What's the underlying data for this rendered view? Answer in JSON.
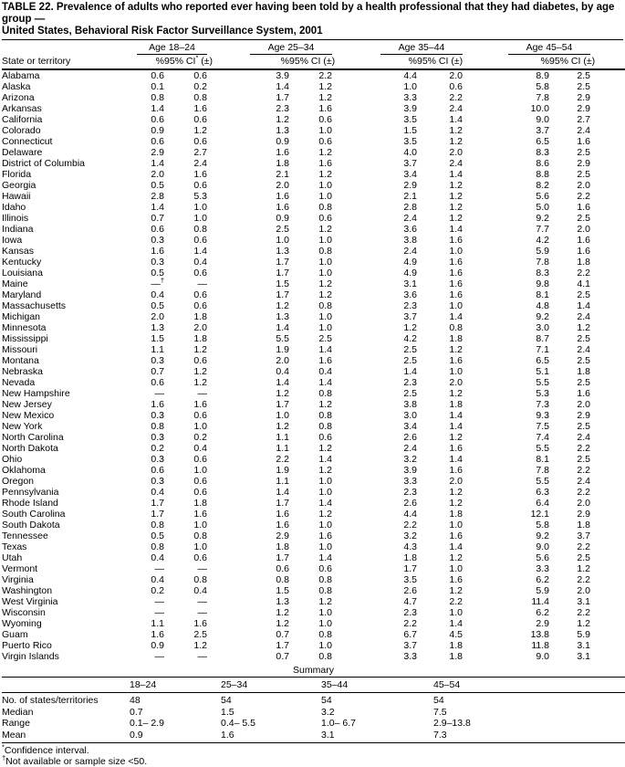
{
  "title": {
    "line1": "TABLE 22. Prevalence of adults who reported ever having been told by a health professional that they had diabetes, by age group —",
    "line2": "United States, Behavioral Risk Factor Surveillance System, 2001"
  },
  "table": {
    "state_col_header": "State or territory",
    "age_groups": [
      "Age 18–24",
      "Age 25–34",
      "Age 35–44",
      "Age 45–54"
    ],
    "subheaders": {
      "pct": "%",
      "ci_first": "95% CI* (±)",
      "ci": "95% CI (±)"
    },
    "rows": [
      {
        "state": "Alabama",
        "values": [
          "0.6",
          "0.6",
          "3.9",
          "2.2",
          "4.4",
          "2.0",
          "8.9",
          "2.5"
        ]
      },
      {
        "state": "Alaska",
        "values": [
          "0.1",
          "0.2",
          "1.4",
          "1.2",
          "1.0",
          "0.6",
          "5.8",
          "2.5"
        ]
      },
      {
        "state": "Arizona",
        "values": [
          "0.8",
          "0.8",
          "1.7",
          "1.2",
          "3.3",
          "2.2",
          "7.8",
          "2.9"
        ]
      },
      {
        "state": "Arkansas",
        "values": [
          "1.4",
          "1.6",
          "2.3",
          "1.6",
          "3.9",
          "2.4",
          "10.0",
          "2.9"
        ]
      },
      {
        "state": "California",
        "values": [
          "0.6",
          "0.6",
          "1.2",
          "0.6",
          "3.5",
          "1.4",
          "9.0",
          "2.7"
        ]
      },
      {
        "state": "Colorado",
        "values": [
          "0.9",
          "1.2",
          "1.3",
          "1.0",
          "1.5",
          "1.2",
          "3.7",
          "2.4"
        ]
      },
      {
        "state": "Connecticut",
        "values": [
          "0.6",
          "0.6",
          "0.9",
          "0.6",
          "3.5",
          "1.2",
          "6.5",
          "1.6"
        ]
      },
      {
        "state": "Delaware",
        "values": [
          "2.9",
          "2.7",
          "1.6",
          "1.2",
          "4.0",
          "2.0",
          "8.3",
          "2.5"
        ]
      },
      {
        "state": "District of Columbia",
        "values": [
          "1.4",
          "2.4",
          "1.8",
          "1.6",
          "3.7",
          "2.4",
          "8.6",
          "2.9"
        ]
      },
      {
        "state": "Florida",
        "values": [
          "2.0",
          "1.6",
          "2.1",
          "1.2",
          "3.4",
          "1.4",
          "8.8",
          "2.5"
        ]
      },
      {
        "state": "Georgia",
        "values": [
          "0.5",
          "0.6",
          "2.0",
          "1.0",
          "2.9",
          "1.2",
          "8.2",
          "2.0"
        ]
      },
      {
        "state": "Hawaii",
        "values": [
          "2.8",
          "5.3",
          "1.6",
          "1.0",
          "2.1",
          "1.2",
          "5.6",
          "2.2"
        ]
      },
      {
        "state": "Idaho",
        "values": [
          "1.4",
          "1.0",
          "1.6",
          "0.8",
          "2.8",
          "1.2",
          "5.0",
          "1.6"
        ]
      },
      {
        "state": "Illinois",
        "values": [
          "0.7",
          "1.0",
          "0.9",
          "0.6",
          "2.4",
          "1.2",
          "9.2",
          "2.5"
        ]
      },
      {
        "state": "Indiana",
        "values": [
          "0.6",
          "0.8",
          "2.5",
          "1.2",
          "3.6",
          "1.4",
          "7.7",
          "2.0"
        ]
      },
      {
        "state": "Iowa",
        "values": [
          "0.3",
          "0.6",
          "1.0",
          "1.0",
          "3.8",
          "1.6",
          "4.2",
          "1.6"
        ]
      },
      {
        "state": "Kansas",
        "values": [
          "1.6",
          "1.4",
          "1.3",
          "0.8",
          "2.4",
          "1.0",
          "5.9",
          "1.6"
        ]
      },
      {
        "state": "Kentucky",
        "values": [
          "0.3",
          "0.4",
          "1.7",
          "1.0",
          "4.9",
          "1.6",
          "7.8",
          "1.8"
        ]
      },
      {
        "state": "Louisiana",
        "values": [
          "0.5",
          "0.6",
          "1.7",
          "1.0",
          "4.9",
          "1.6",
          "8.3",
          "2.2"
        ]
      },
      {
        "state": "Maine",
        "values": [
          "—†",
          "—",
          "1.5",
          "1.2",
          "3.1",
          "1.6",
          "9.8",
          "4.1"
        ]
      },
      {
        "state": "Maryland",
        "values": [
          "0.4",
          "0.6",
          "1.7",
          "1.2",
          "3.6",
          "1.6",
          "8.1",
          "2.5"
        ]
      },
      {
        "state": "Massachusetts",
        "values": [
          "0.5",
          "0.6",
          "1.2",
          "0.8",
          "2.3",
          "1.0",
          "4.8",
          "1.4"
        ]
      },
      {
        "state": "Michigan",
        "values": [
          "2.0",
          "1.8",
          "1.3",
          "1.0",
          "3.7",
          "1.4",
          "9.2",
          "2.4"
        ]
      },
      {
        "state": "Minnesota",
        "values": [
          "1.3",
          "2.0",
          "1.4",
          "1.0",
          "1.2",
          "0.8",
          "3.0",
          "1.2"
        ]
      },
      {
        "state": "Mississippi",
        "values": [
          "1.5",
          "1.8",
          "5.5",
          "2.5",
          "4.2",
          "1.8",
          "8.7",
          "2.5"
        ]
      },
      {
        "state": "Missouri",
        "values": [
          "1.1",
          "1.2",
          "1.9",
          "1.4",
          "2.5",
          "1.2",
          "7.1",
          "2.4"
        ]
      },
      {
        "state": "Montana",
        "values": [
          "0.3",
          "0.6",
          "2.0",
          "1.6",
          "2.5",
          "1.6",
          "6.5",
          "2.5"
        ]
      },
      {
        "state": "Nebraska",
        "values": [
          "0.7",
          "1.2",
          "0.4",
          "0.4",
          "1.4",
          "1.0",
          "5.1",
          "1.8"
        ]
      },
      {
        "state": "Nevada",
        "values": [
          "0.6",
          "1.2",
          "1.4",
          "1.4",
          "2.3",
          "2.0",
          "5.5",
          "2.5"
        ]
      },
      {
        "state": "New Hampshire",
        "values": [
          "—",
          "—",
          "1.2",
          "0.8",
          "2.5",
          "1.2",
          "5.3",
          "1.6"
        ]
      },
      {
        "state": "New Jersey",
        "values": [
          "1.6",
          "1.6",
          "1.7",
          "1.2",
          "3.8",
          "1.8",
          "7.3",
          "2.0"
        ]
      },
      {
        "state": "New Mexico",
        "values": [
          "0.3",
          "0.6",
          "1.0",
          "0.8",
          "3.0",
          "1.4",
          "9.3",
          "2.9"
        ]
      },
      {
        "state": "New York",
        "values": [
          "0.8",
          "1.0",
          "1.2",
          "0.8",
          "3.4",
          "1.4",
          "7.5",
          "2.5"
        ]
      },
      {
        "state": "North Carolina",
        "values": [
          "0.3",
          "0.2",
          "1.1",
          "0.6",
          "2.6",
          "1.2",
          "7.4",
          "2.4"
        ]
      },
      {
        "state": "North Dakota",
        "values": [
          "0.2",
          "0.4",
          "1.1",
          "1.2",
          "2.4",
          "1.6",
          "5.5",
          "2.2"
        ]
      },
      {
        "state": "Ohio",
        "values": [
          "0.3",
          "0.6",
          "2.2",
          "1.4",
          "3.2",
          "1.4",
          "8.1",
          "2.5"
        ]
      },
      {
        "state": "Oklahoma",
        "values": [
          "0.6",
          "1.0",
          "1.9",
          "1.2",
          "3.9",
          "1.6",
          "7.8",
          "2.2"
        ]
      },
      {
        "state": "Oregon",
        "values": [
          "0.3",
          "0.6",
          "1.1",
          "1.0",
          "3.3",
          "2.0",
          "5.5",
          "2.4"
        ]
      },
      {
        "state": "Pennsylvania",
        "values": [
          "0.4",
          "0.6",
          "1.4",
          "1.0",
          "2.3",
          "1.2",
          "6.3",
          "2.2"
        ]
      },
      {
        "state": "Rhode Island",
        "values": [
          "1.7",
          "1.8",
          "1.7",
          "1.4",
          "2.6",
          "1.2",
          "6.4",
          "2.0"
        ]
      },
      {
        "state": "South Carolina",
        "values": [
          "1.7",
          "1.6",
          "1.6",
          "1.2",
          "4.4",
          "1.8",
          "12.1",
          "2.9"
        ]
      },
      {
        "state": "South Dakota",
        "values": [
          "0.8",
          "1.0",
          "1.6",
          "1.0",
          "2.2",
          "1.0",
          "5.8",
          "1.8"
        ]
      },
      {
        "state": "Tennessee",
        "values": [
          "0.5",
          "0.8",
          "2.9",
          "1.6",
          "3.2",
          "1.6",
          "9.2",
          "3.7"
        ]
      },
      {
        "state": "Texas",
        "values": [
          "0.8",
          "1.0",
          "1.8",
          "1.0",
          "4.3",
          "1.4",
          "9.0",
          "2.2"
        ]
      },
      {
        "state": "Utah",
        "values": [
          "0.4",
          "0.6",
          "1.7",
          "1.4",
          "1.8",
          "1.2",
          "5.6",
          "2.5"
        ]
      },
      {
        "state": "Vermont",
        "values": [
          "—",
          "—",
          "0.6",
          "0.6",
          "1.7",
          "1.0",
          "3.3",
          "1.2"
        ]
      },
      {
        "state": "Virginia",
        "values": [
          "0.4",
          "0.8",
          "0.8",
          "0.8",
          "3.5",
          "1.6",
          "6.2",
          "2.2"
        ]
      },
      {
        "state": "Washington",
        "values": [
          "0.2",
          "0.4",
          "1.5",
          "0.8",
          "2.6",
          "1.2",
          "5.9",
          "2.0"
        ]
      },
      {
        "state": "West Virginia",
        "values": [
          "—",
          "—",
          "1.3",
          "1.2",
          "4.7",
          "2.2",
          "11.4",
          "3.1"
        ]
      },
      {
        "state": "Wisconsin",
        "values": [
          "—",
          "—",
          "1.2",
          "1.0",
          "2.3",
          "1.0",
          "6.2",
          "2.2"
        ]
      },
      {
        "state": "Wyoming",
        "values": [
          "1.1",
          "1.6",
          "1.2",
          "1.0",
          "2.2",
          "1.4",
          "2.9",
          "1.2"
        ]
      },
      {
        "state": "Guam",
        "values": [
          "1.6",
          "2.5",
          "0.7",
          "0.8",
          "6.7",
          "4.5",
          "13.8",
          "5.9"
        ]
      },
      {
        "state": "Puerto Rico",
        "values": [
          "0.9",
          "1.2",
          "1.7",
          "1.0",
          "3.7",
          "1.8",
          "11.8",
          "3.1"
        ]
      },
      {
        "state": "Virgin Islands",
        "values": [
          "—",
          "—",
          "0.7",
          "0.8",
          "3.3",
          "1.8",
          "9.0",
          "3.1"
        ]
      }
    ]
  },
  "summary": {
    "title": "Summary",
    "col_headers": [
      "18–24",
      "25–34",
      "35–44",
      "45–54"
    ],
    "rows": [
      {
        "label": "No. of states/territories",
        "values": [
          "48",
          "54",
          "54",
          "54"
        ]
      },
      {
        "label": "Median",
        "values": [
          "0.7",
          "1.5",
          "3.2",
          "7.5"
        ]
      },
      {
        "label": "Range",
        "values": [
          "0.1– 2.9",
          "0.4– 5.5",
          "1.0– 6.7",
          "2.9–13.8"
        ]
      },
      {
        "label": "Mean",
        "values": [
          "0.9",
          "1.6",
          "3.1",
          "7.3"
        ]
      }
    ]
  },
  "footnotes": [
    {
      "marker": "*",
      "text": "Confidence interval."
    },
    {
      "marker": "†",
      "text": "Not available or sample size <50."
    }
  ]
}
